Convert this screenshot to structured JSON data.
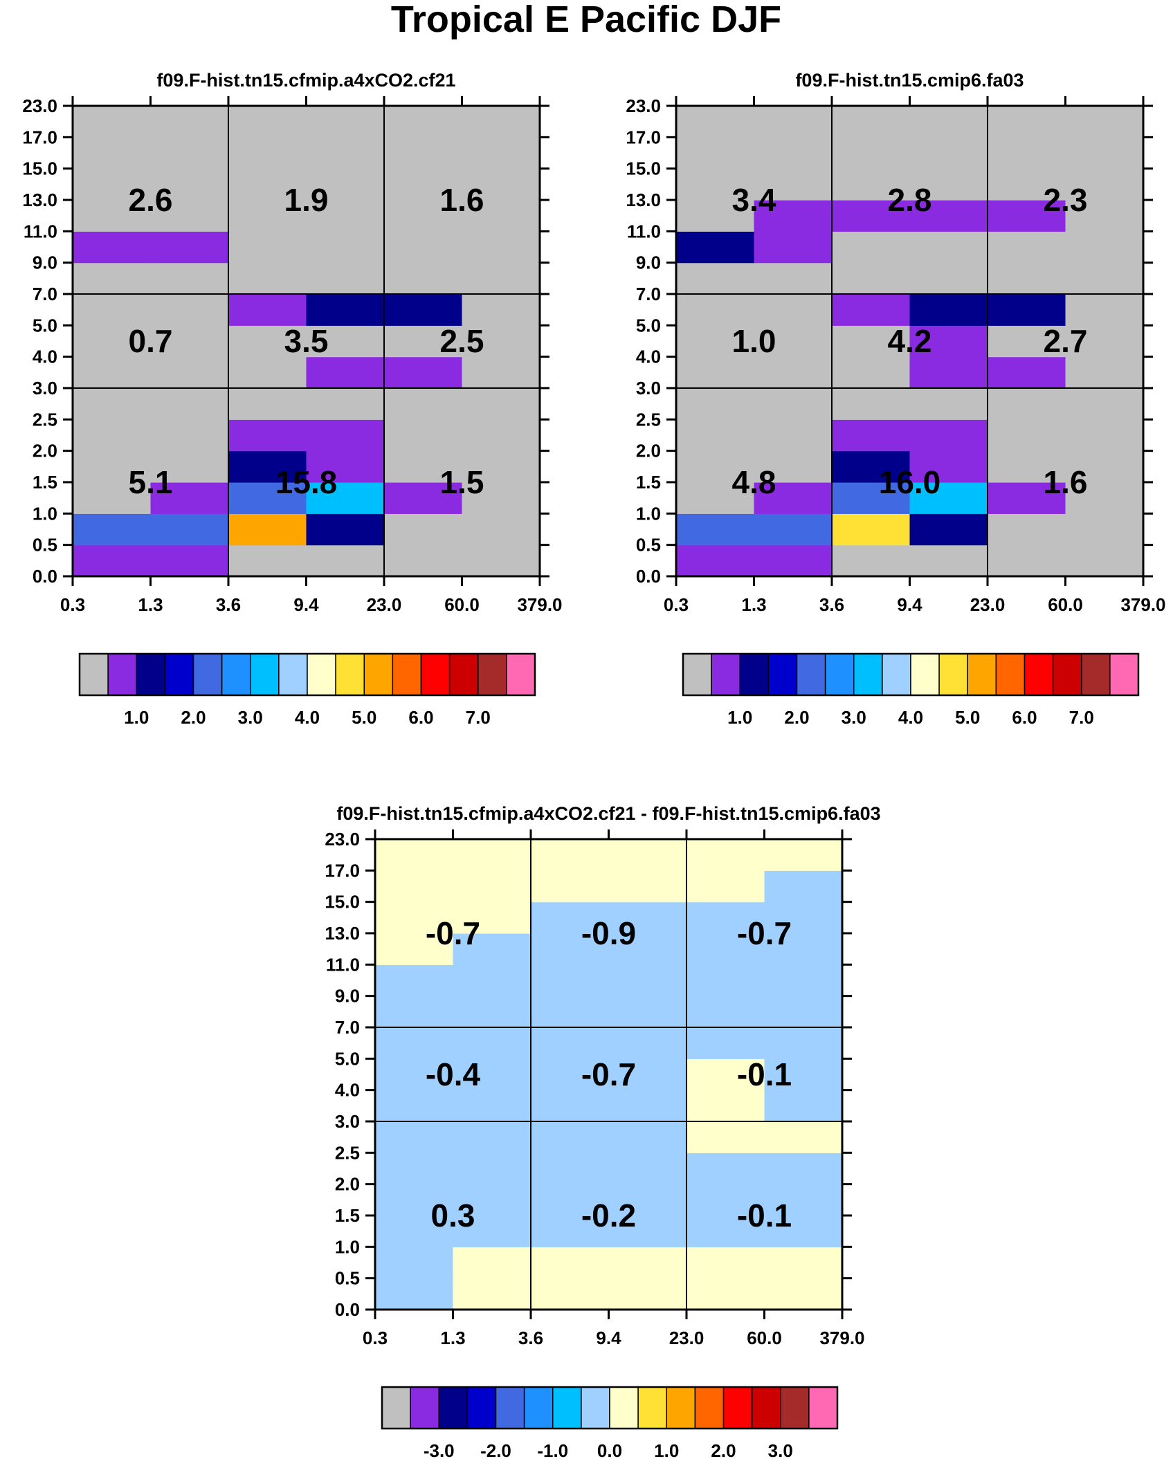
{
  "title": "Tropical E Pacific DJF",
  "palette": [
    "#c0c0c0",
    "#8a2be2",
    "#00008b",
    "#0000cd",
    "#4169e1",
    "#1e90ff",
    "#00bfff",
    "#a0d0ff",
    "#ffffcc",
    "#ffe135",
    "#ffa500",
    "#ff6600",
    "#ff0000",
    "#cc0000",
    "#a52a2a",
    "#ff69b4"
  ],
  "x_ticks": [
    "0.3",
    "1.3",
    "3.6",
    "9.4",
    "23.0",
    "60.0",
    "379.0"
  ],
  "y_ticks": [
    "0.0",
    "0.5",
    "1.0",
    "1.5",
    "2.0",
    "2.5",
    "3.0",
    "4.0",
    "5.0",
    "7.0",
    "9.0",
    "11.0",
    "13.0",
    "15.0",
    "17.0",
    "23.0"
  ],
  "chart_data": [
    {
      "type": "heatmap",
      "id": "panel-a",
      "title": "f09.F-hist.tn15.cfmip.a4xCO2.cf21",
      "xlabel": "",
      "ylabel": "",
      "grid": [
        [
          1,
          1,
          0,
          0,
          0,
          0
        ],
        [
          4,
          4,
          10,
          2,
          0,
          0
        ],
        [
          0,
          1,
          4,
          6,
          1,
          0
        ],
        [
          0,
          0,
          2,
          1,
          0,
          0
        ],
        [
          0,
          0,
          1,
          1,
          0,
          0
        ],
        [
          0,
          0,
          0,
          0,
          0,
          0
        ],
        [
          0,
          0,
          0,
          1,
          1,
          0
        ],
        [
          0,
          0,
          0,
          0,
          0,
          0
        ],
        [
          0,
          0,
          1,
          2,
          2,
          0
        ],
        [
          0,
          0,
          0,
          0,
          0,
          0
        ],
        [
          1,
          1,
          0,
          0,
          0,
          0
        ],
        [
          0,
          0,
          0,
          0,
          0,
          0
        ],
        [
          0,
          0,
          0,
          0,
          0,
          0
        ],
        [
          0,
          0,
          0,
          0,
          0,
          0
        ],
        [
          0,
          0,
          0,
          0,
          0,
          0
        ]
      ],
      "box_values": [
        [
          "5.1",
          "15.8",
          "1.5"
        ],
        [
          "0.7",
          "3.5",
          "2.5"
        ],
        [
          "2.6",
          "1.9",
          "1.6"
        ]
      ],
      "colorbar_labels": [
        "1.0",
        "2.0",
        "3.0",
        "4.0",
        "5.0",
        "6.0",
        "7.0"
      ]
    },
    {
      "type": "heatmap",
      "id": "panel-b",
      "title": "f09.F-hist.tn15.cmip6.fa03",
      "xlabel": "",
      "ylabel": "",
      "grid": [
        [
          1,
          1,
          0,
          0,
          0,
          0
        ],
        [
          4,
          4,
          9,
          2,
          0,
          0
        ],
        [
          0,
          1,
          4,
          6,
          1,
          0
        ],
        [
          0,
          0,
          2,
          1,
          0,
          0
        ],
        [
          0,
          0,
          1,
          1,
          0,
          0
        ],
        [
          0,
          0,
          0,
          0,
          0,
          0
        ],
        [
          0,
          0,
          0,
          1,
          1,
          0
        ],
        [
          0,
          0,
          0,
          1,
          0,
          0
        ],
        [
          0,
          0,
          1,
          2,
          2,
          0
        ],
        [
          0,
          0,
          0,
          0,
          0,
          0
        ],
        [
          2,
          1,
          0,
          0,
          0,
          0
        ],
        [
          0,
          1,
          1,
          1,
          1,
          0
        ],
        [
          0,
          0,
          0,
          0,
          0,
          0
        ],
        [
          0,
          0,
          0,
          0,
          0,
          0
        ],
        [
          0,
          0,
          0,
          0,
          0,
          0
        ]
      ],
      "box_values": [
        [
          "4.8",
          "16.0",
          "1.6"
        ],
        [
          "1.0",
          "4.2",
          "2.7"
        ],
        [
          "3.4",
          "2.8",
          "2.3"
        ]
      ],
      "colorbar_labels": [
        "1.0",
        "2.0",
        "3.0",
        "4.0",
        "5.0",
        "6.0",
        "7.0"
      ]
    },
    {
      "type": "heatmap",
      "id": "panel-diff",
      "title": "f09.F-hist.tn15.cfmip.a4xCO2.cf21 - f09.F-hist.tn15.cmip6.fa03",
      "xlabel": "",
      "ylabel": "",
      "grid": [
        [
          7,
          8,
          8,
          8,
          8,
          8
        ],
        [
          7,
          8,
          8,
          8,
          8,
          8
        ],
        [
          7,
          7,
          7,
          7,
          7,
          7
        ],
        [
          7,
          7,
          7,
          7,
          7,
          7
        ],
        [
          7,
          7,
          7,
          7,
          7,
          7
        ],
        [
          7,
          7,
          7,
          7,
          8,
          8
        ],
        [
          7,
          7,
          7,
          7,
          8,
          7
        ],
        [
          7,
          7,
          7,
          7,
          8,
          7
        ],
        [
          7,
          7,
          7,
          7,
          7,
          7
        ],
        [
          7,
          7,
          7,
          7,
          7,
          7
        ],
        [
          7,
          7,
          7,
          7,
          7,
          7
        ],
        [
          8,
          7,
          7,
          7,
          7,
          7
        ],
        [
          8,
          8,
          7,
          7,
          7,
          7
        ],
        [
          8,
          8,
          8,
          8,
          8,
          7
        ],
        [
          8,
          8,
          8,
          8,
          8,
          8
        ]
      ],
      "box_values": [
        [
          "0.3",
          "-0.2",
          "-0.1"
        ],
        [
          "-0.4",
          "-0.7",
          "-0.1"
        ],
        [
          "-0.7",
          "-0.9",
          "-0.7"
        ]
      ],
      "colorbar_labels": [
        "-3.0",
        "-2.0",
        "-1.0",
        "0.0",
        "1.0",
        "2.0",
        "3.0"
      ]
    }
  ]
}
